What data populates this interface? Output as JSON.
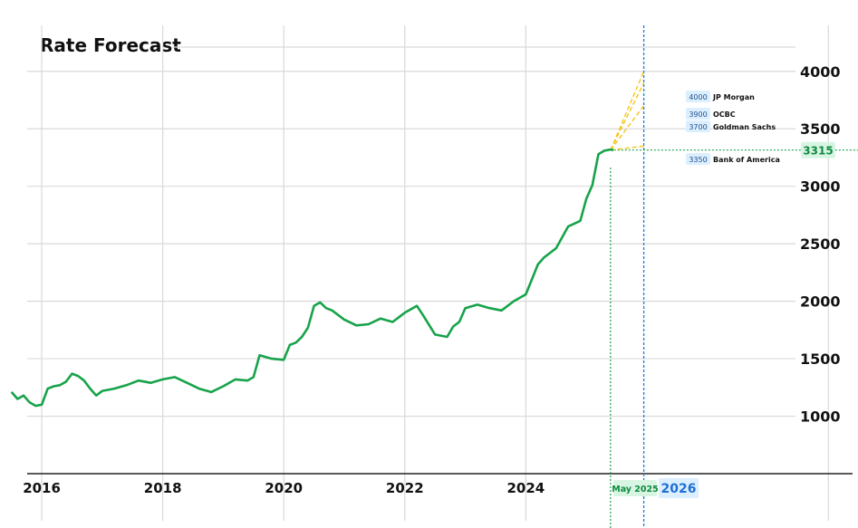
{
  "colors": {
    "series": "#17a34a",
    "grid": "#d9d9d9",
    "axis": "#222222",
    "forecast_lines": "#f5c518",
    "current_marker": "#17a34a",
    "target_marker": "#1f7ae0",
    "label_bg_blue": "#dcefff",
    "label_bg_green": "#d8f5e3"
  },
  "chart_data": {
    "type": "line",
    "title": "Rate Forecast",
    "x_ticks": [
      "2016",
      "2018",
      "2020",
      "2022",
      "2024"
    ],
    "y_ticks": [
      "1000",
      "1500",
      "2000",
      "2500",
      "3000",
      "3500",
      "4000"
    ],
    "xlim": [
      2015.4,
      2029.4
    ],
    "ylim": [
      500,
      4400
    ],
    "grid": true,
    "y_axis_side": "right",
    "series": [
      {
        "values_x": [
          2015.5,
          2015.6,
          2015.7,
          2015.8,
          2015.9,
          2016.0,
          2016.1,
          2016.2,
          2016.3,
          2016.4,
          2016.5,
          2016.6,
          2016.7,
          2016.8,
          2016.9,
          2017.0,
          2017.2,
          2017.4,
          2017.6,
          2017.8,
          2018.0,
          2018.2,
          2018.4,
          2018.6,
          2018.8,
          2019.0,
          2019.2,
          2019.4,
          2019.5,
          2019.6,
          2019.8,
          2020.0,
          2020.1,
          2020.2,
          2020.3,
          2020.4,
          2020.5,
          2020.6,
          2020.7,
          2020.8,
          2021.0,
          2021.2,
          2021.4,
          2021.6,
          2021.8,
          2022.0,
          2022.2,
          2022.3,
          2022.5,
          2022.7,
          2022.8,
          2022.9,
          2023.0,
          2023.2,
          2023.4,
          2023.6,
          2023.8,
          2024.0,
          2024.2,
          2024.3,
          2024.5,
          2024.7,
          2024.9,
          2025.0,
          2025.1,
          2025.2,
          2025.3,
          2025.4,
          2025.45
        ],
        "values_y": [
          1210,
          1150,
          1180,
          1120,
          1090,
          1100,
          1240,
          1260,
          1270,
          1300,
          1370,
          1350,
          1310,
          1240,
          1180,
          1220,
          1240,
          1270,
          1310,
          1290,
          1320,
          1340,
          1290,
          1240,
          1210,
          1260,
          1320,
          1310,
          1340,
          1530,
          1500,
          1490,
          1620,
          1640,
          1690,
          1770,
          1960,
          1990,
          1940,
          1920,
          1840,
          1790,
          1800,
          1850,
          1820,
          1900,
          1960,
          1880,
          1710,
          1690,
          1780,
          1820,
          1940,
          1970,
          1940,
          1920,
          2000,
          2060,
          2320,
          2380,
          2460,
          2650,
          2700,
          2890,
          3010,
          3280,
          3310,
          3320,
          3315
        ]
      }
    ],
    "current": {
      "label": "May 2025",
      "x": 2025.4,
      "value": "3315",
      "y": 3315
    },
    "target": {
      "label": "2026",
      "x": 2025.95
    },
    "forecasts": [
      {
        "value": "4000",
        "bank": "JP  Morgan",
        "y": 4000
      },
      {
        "value": "3900",
        "bank": "OCBC",
        "y": 3900
      },
      {
        "value": "3700",
        "bank": "Goldman Sachs",
        "y": 3700
      },
      {
        "value": "3350",
        "bank": "Bank of America",
        "y": 3350
      }
    ]
  }
}
